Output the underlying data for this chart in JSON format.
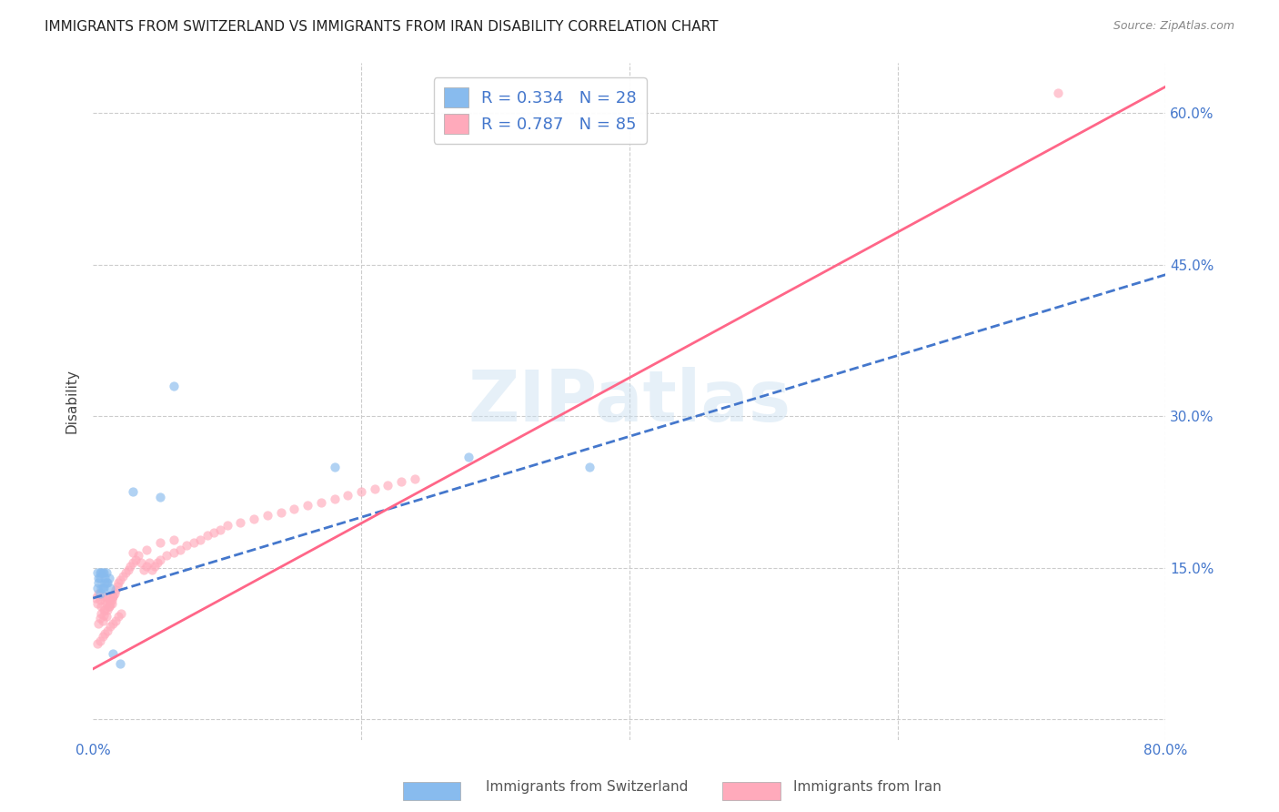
{
  "title": "IMMIGRANTS FROM SWITZERLAND VS IMMIGRANTS FROM IRAN DISABILITY CORRELATION CHART",
  "source": "Source: ZipAtlas.com",
  "xlabel": "",
  "ylabel": "Disability",
  "xlim": [
    0.0,
    0.8
  ],
  "ylim": [
    -0.02,
    0.65
  ],
  "xticks": [
    0.0,
    0.2,
    0.4,
    0.6,
    0.8
  ],
  "xticklabels": [
    "0.0%",
    "",
    "",
    "",
    "80.0%"
  ],
  "ytick_positions": [
    0.0,
    0.15,
    0.3,
    0.45,
    0.6
  ],
  "ytick_labels_right": [
    "",
    "15.0%",
    "30.0%",
    "45.0%",
    "60.0%"
  ],
  "grid_color": "#cccccc",
  "background_color": "#ffffff",
  "watermark": "ZIPatlas",
  "legend_R1": "R = 0.334",
  "legend_N1": "N = 28",
  "legend_R2": "R = 0.787",
  "legend_N2": "N = 85",
  "color_swiss": "#88bbee",
  "color_iran": "#ffaabb",
  "color_swiss_line": "#4477cc",
  "color_iran_line": "#ff6688",
  "scatter_alpha": 0.65,
  "scatter_size": 55,
  "swiss_x": [
    0.005,
    0.008,
    0.01,
    0.012,
    0.006,
    0.004,
    0.007,
    0.009,
    0.003,
    0.005,
    0.008,
    0.01,
    0.006,
    0.004,
    0.007,
    0.009,
    0.003,
    0.011,
    0.013,
    0.005,
    0.03,
    0.05,
    0.06,
    0.18,
    0.28,
    0.37,
    0.02,
    0.015
  ],
  "swiss_y": [
    0.145,
    0.145,
    0.145,
    0.14,
    0.145,
    0.14,
    0.145,
    0.14,
    0.145,
    0.14,
    0.13,
    0.135,
    0.13,
    0.135,
    0.13,
    0.135,
    0.13,
    0.135,
    0.13,
    0.125,
    0.225,
    0.22,
    0.33,
    0.25,
    0.26,
    0.25,
    0.055,
    0.065
  ],
  "iran_x": [
    0.002,
    0.003,
    0.004,
    0.005,
    0.006,
    0.007,
    0.008,
    0.009,
    0.01,
    0.011,
    0.012,
    0.013,
    0.014,
    0.015,
    0.004,
    0.005,
    0.006,
    0.007,
    0.008,
    0.009,
    0.01,
    0.011,
    0.012,
    0.013,
    0.014,
    0.015,
    0.016,
    0.017,
    0.018,
    0.019,
    0.02,
    0.022,
    0.024,
    0.026,
    0.028,
    0.03,
    0.032,
    0.034,
    0.036,
    0.038,
    0.04,
    0.042,
    0.044,
    0.046,
    0.048,
    0.05,
    0.055,
    0.06,
    0.065,
    0.07,
    0.075,
    0.08,
    0.085,
    0.09,
    0.095,
    0.1,
    0.11,
    0.12,
    0.13,
    0.14,
    0.15,
    0.16,
    0.17,
    0.18,
    0.19,
    0.2,
    0.21,
    0.22,
    0.23,
    0.24,
    0.003,
    0.005,
    0.007,
    0.009,
    0.011,
    0.013,
    0.015,
    0.017,
    0.019,
    0.021,
    0.03,
    0.04,
    0.05,
    0.06,
    0.72
  ],
  "iran_y": [
    0.12,
    0.115,
    0.125,
    0.118,
    0.112,
    0.122,
    0.108,
    0.118,
    0.115,
    0.12,
    0.112,
    0.118,
    0.115,
    0.122,
    0.095,
    0.1,
    0.105,
    0.098,
    0.103,
    0.108,
    0.102,
    0.108,
    0.112,
    0.115,
    0.118,
    0.122,
    0.125,
    0.128,
    0.132,
    0.135,
    0.138,
    0.142,
    0.145,
    0.148,
    0.152,
    0.155,
    0.158,
    0.162,
    0.155,
    0.148,
    0.152,
    0.155,
    0.148,
    0.152,
    0.155,
    0.158,
    0.162,
    0.165,
    0.168,
    0.172,
    0.175,
    0.178,
    0.182,
    0.185,
    0.188,
    0.192,
    0.195,
    0.198,
    0.202,
    0.205,
    0.208,
    0.212,
    0.215,
    0.218,
    0.222,
    0.225,
    0.228,
    0.232,
    0.235,
    0.238,
    0.075,
    0.078,
    0.082,
    0.085,
    0.088,
    0.092,
    0.095,
    0.098,
    0.102,
    0.105,
    0.165,
    0.168,
    0.175,
    0.178,
    0.62
  ],
  "swiss_line_x": [
    0.0,
    0.8
  ],
  "swiss_line_y_start": 0.12,
  "swiss_line_slope": 0.4,
  "iran_line_x": [
    0.0,
    0.8
  ],
  "iran_line_y_start": 0.05,
  "iran_line_slope": 0.72
}
